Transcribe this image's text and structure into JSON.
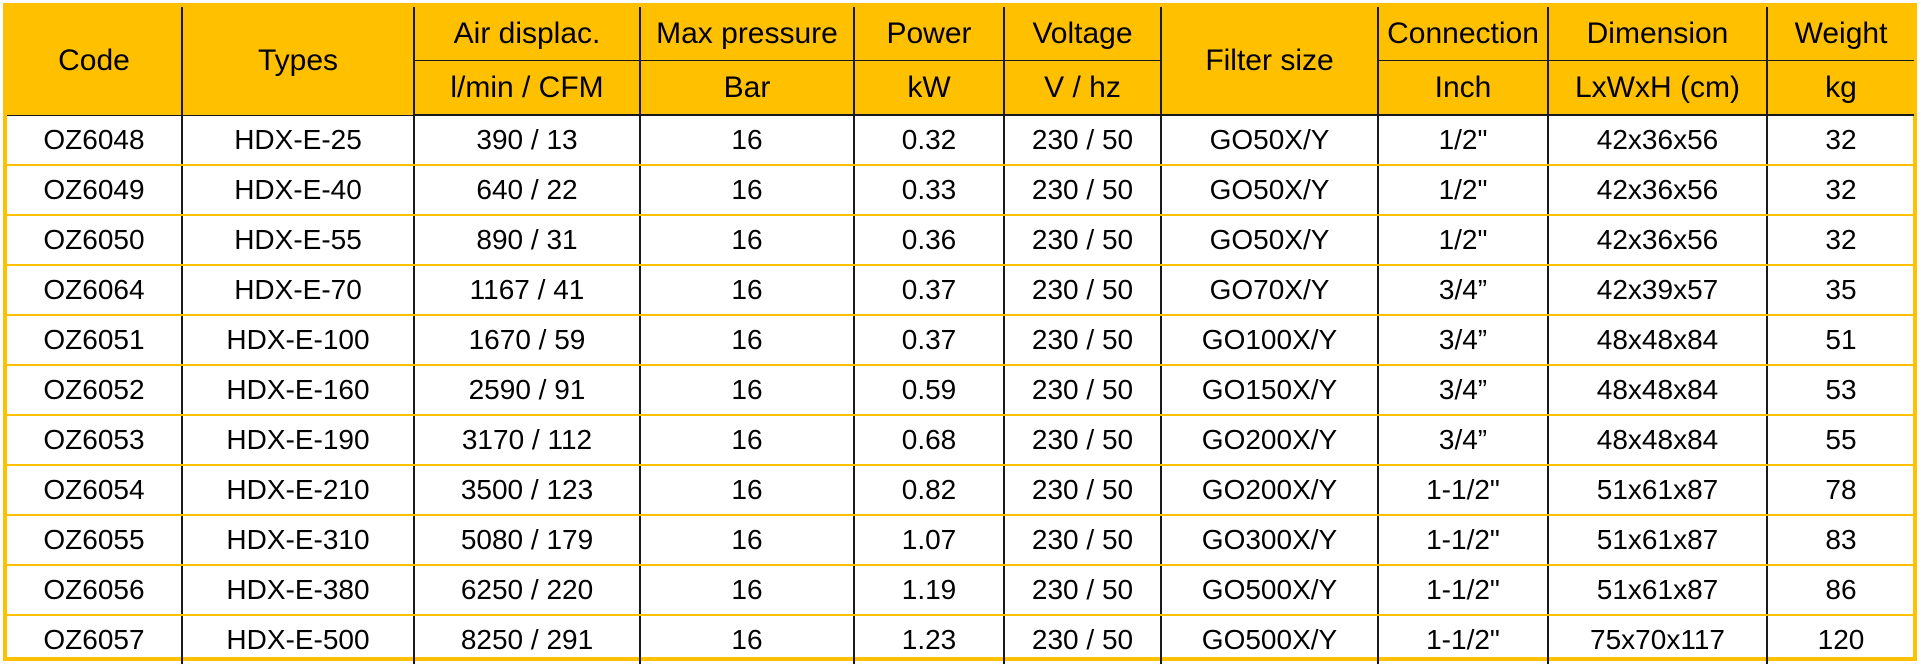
{
  "colors": {
    "header_bg": "#FFC000",
    "row_divider": "#FFC000",
    "column_divider": "#1a1a1a",
    "text": "#000000"
  },
  "headers": {
    "code": "Code",
    "types": "Types",
    "air_displac": "Air displac.",
    "air_displac_unit": "l/min / CFM",
    "max_pressure": "Max pressure",
    "max_pressure_unit": "Bar",
    "power": "Power",
    "power_unit": "kW",
    "voltage": "Voltage",
    "voltage_unit": "V / hz",
    "filter_size": "Filter size",
    "connection": "Connection",
    "connection_unit": "Inch",
    "dimension": "Dimension",
    "dimension_unit": "LxWxH (cm)",
    "weight": "Weight",
    "weight_unit": "kg"
  },
  "rows": [
    {
      "code": "OZ6048",
      "type": "HDX-E-25",
      "air": "390 / 13",
      "pressure": "16",
      "power": "0.32",
      "voltage": "230 / 50",
      "filter": "GO50X/Y",
      "connection": "1/2\"",
      "dimension": "42x36x56",
      "weight": "32"
    },
    {
      "code": "OZ6049",
      "type": "HDX-E-40",
      "air": "640 / 22",
      "pressure": "16",
      "power": "0.33",
      "voltage": "230 / 50",
      "filter": "GO50X/Y",
      "connection": "1/2\"",
      "dimension": "42x36x56",
      "weight": "32"
    },
    {
      "code": "OZ6050",
      "type": "HDX-E-55",
      "air": "890 / 31",
      "pressure": "16",
      "power": "0.36",
      "voltage": "230 / 50",
      "filter": "GO50X/Y",
      "connection": "1/2\"",
      "dimension": "42x36x56",
      "weight": "32"
    },
    {
      "code": "OZ6064",
      "type": "HDX-E-70",
      "air": "1167 / 41",
      "pressure": "16",
      "power": "0.37",
      "voltage": "230 / 50",
      "filter": "GO70X/Y",
      "connection": "3/4”",
      "dimension": "42x39x57",
      "weight": "35"
    },
    {
      "code": "OZ6051",
      "type": "HDX-E-100",
      "air": "1670 / 59",
      "pressure": "16",
      "power": "0.37",
      "voltage": "230 / 50",
      "filter": "GO100X/Y",
      "connection": "3/4”",
      "dimension": "48x48x84",
      "weight": "51"
    },
    {
      "code": "OZ6052",
      "type": "HDX-E-160",
      "air": "2590 / 91",
      "pressure": "16",
      "power": "0.59",
      "voltage": "230 / 50",
      "filter": "GO150X/Y",
      "connection": "3/4”",
      "dimension": "48x48x84",
      "weight": "53"
    },
    {
      "code": "OZ6053",
      "type": "HDX-E-190",
      "air": "3170 / 112",
      "pressure": "16",
      "power": "0.68",
      "voltage": "230 / 50",
      "filter": "GO200X/Y",
      "connection": "3/4”",
      "dimension": "48x48x84",
      "weight": "55"
    },
    {
      "code": "OZ6054",
      "type": "HDX-E-210",
      "air": "3500 / 123",
      "pressure": "16",
      "power": "0.82",
      "voltage": "230 / 50",
      "filter": "GO200X/Y",
      "connection": "1-1/2\"",
      "dimension": "51x61x87",
      "weight": "78"
    },
    {
      "code": "OZ6055",
      "type": "HDX-E-310",
      "air": "5080 / 179",
      "pressure": "16",
      "power": "1.07",
      "voltage": "230 / 50",
      "filter": "GO300X/Y",
      "connection": "1-1/2\"",
      "dimension": "51x61x87",
      "weight": "83"
    },
    {
      "code": "OZ6056",
      "type": "HDX-E-380",
      "air": "6250 / 220",
      "pressure": "16",
      "power": "1.19",
      "voltage": "230 / 50",
      "filter": "GO500X/Y",
      "connection": "1-1/2\"",
      "dimension": "51x61x87",
      "weight": "86"
    },
    {
      "code": "OZ6057",
      "type": "HDX-E-500",
      "air": "8250 / 291",
      "pressure": "16",
      "power": "1.23",
      "voltage": "230 / 50",
      "filter": "GO500X/Y",
      "connection": "1-1/2\"",
      "dimension": "75x70x117",
      "weight": "120"
    }
  ]
}
